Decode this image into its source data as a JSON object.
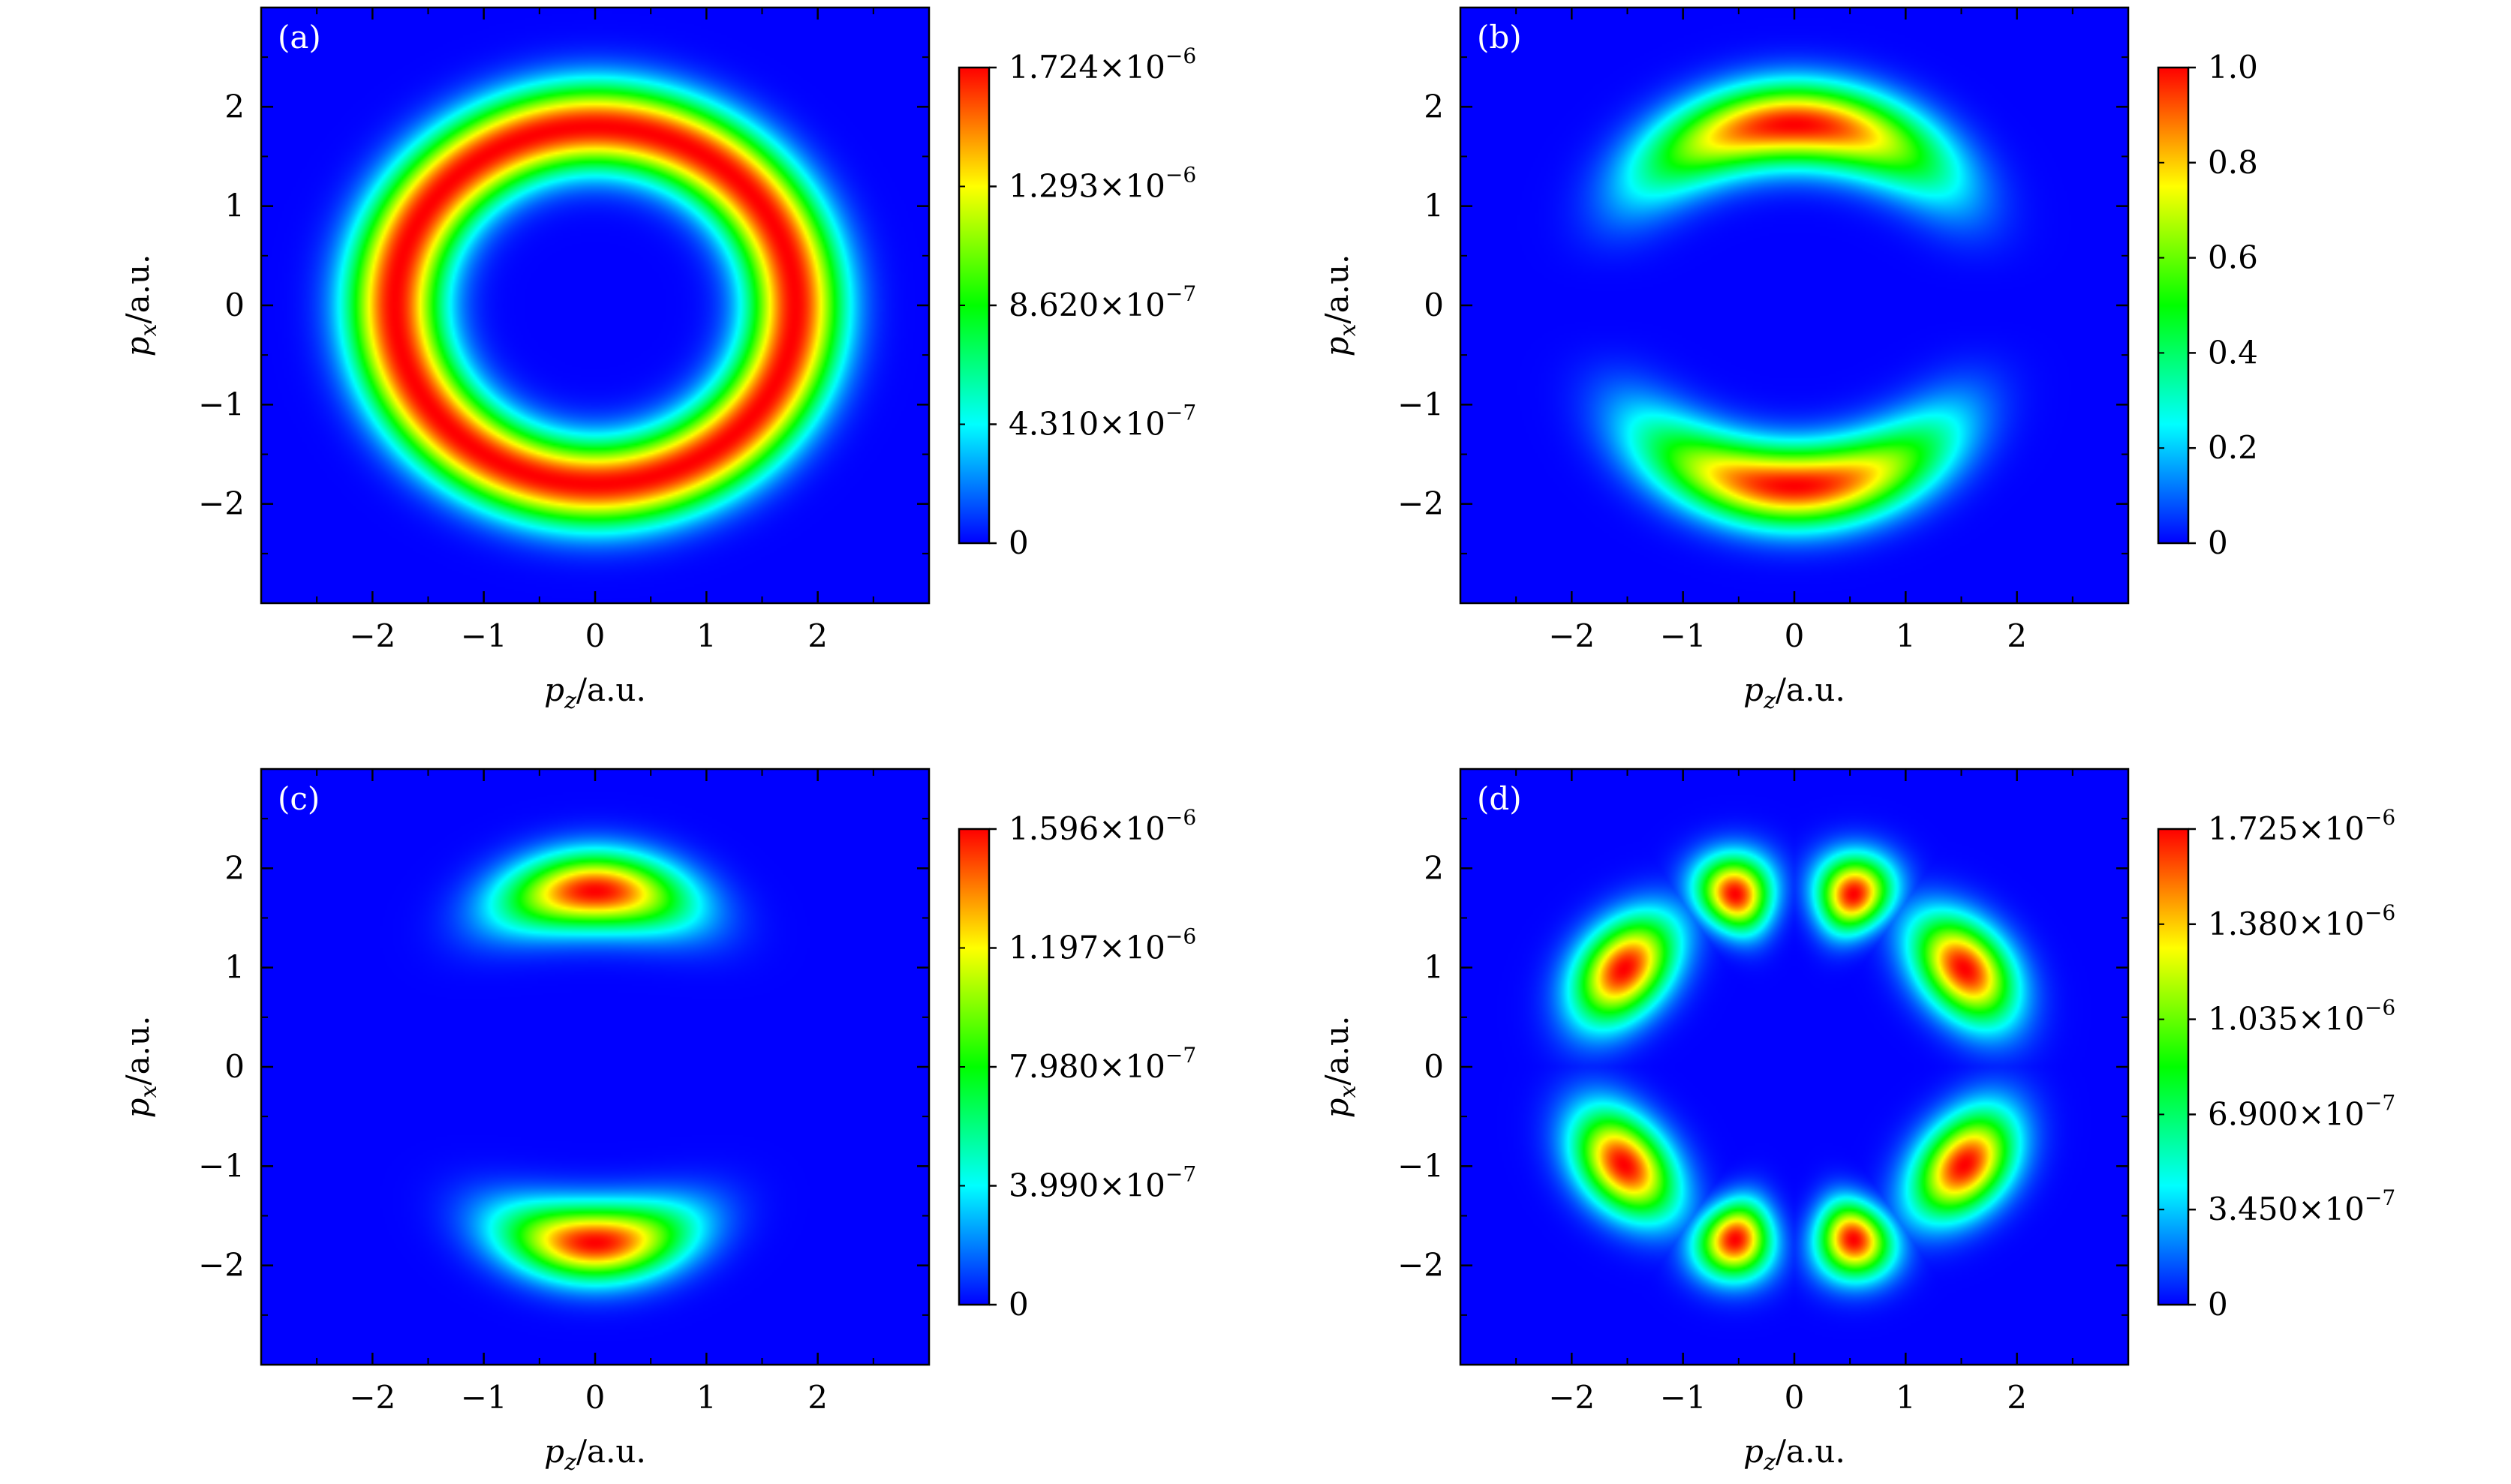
{
  "colormap": [
    "#0000ff",
    "#00ffff",
    "#00ff00",
    "#ffff00",
    "#ff0000"
  ],
  "background_color": "#0000ff",
  "chart_data": [
    {
      "type": "heatmap",
      "panel_label": "(a)",
      "pattern": "ring",
      "xlabel": {
        "main": "p",
        "sub": "z",
        "rest": "/a.u."
      },
      "ylabel": {
        "main": "p",
        "sub": "x",
        "rest": "/a.u."
      },
      "xlim": [
        -3,
        3
      ],
      "ylim": [
        -3,
        3
      ],
      "xticks": [
        -2,
        -1,
        0,
        1,
        2
      ],
      "yticks": [
        -2,
        -1,
        0,
        1,
        2
      ],
      "xtick_labels": [
        "−2",
        "−1",
        "0",
        "1",
        "2"
      ],
      "ytick_labels": [
        "−2",
        "−1",
        "0",
        "1",
        "2"
      ],
      "ring_radius": 1.8,
      "ring_width": 0.3,
      "colorbar": {
        "min": 0,
        "max": 1.724e-06,
        "ticks": [
          {
            "value": 1.724e-06,
            "mant": "1.724",
            "exp": "−6"
          },
          {
            "value": 1.293e-06,
            "mant": "1.293",
            "exp": "−6"
          },
          {
            "value": 8.62e-07,
            "mant": "8.620",
            "exp": "−7"
          },
          {
            "value": 4.31e-07,
            "mant": "4.310",
            "exp": "−7"
          },
          {
            "value": 0,
            "mant": "0",
            "exp": ""
          }
        ]
      }
    },
    {
      "type": "heatmap",
      "panel_label": "(b)",
      "pattern": "arcs-wide",
      "xlabel": {
        "main": "p",
        "sub": "z",
        "rest": "/a.u."
      },
      "ylabel": {
        "main": "p",
        "sub": "x",
        "rest": "/a.u."
      },
      "xlim": [
        -3,
        3
      ],
      "ylim": [
        -3,
        3
      ],
      "xticks": [
        -2,
        -1,
        0,
        1,
        2
      ],
      "yticks": [
        -2,
        -1,
        0,
        1,
        2
      ],
      "xtick_labels": [
        "−2",
        "−1",
        "0",
        "1",
        "2"
      ],
      "ytick_labels": [
        "−2",
        "−1",
        "0",
        "1",
        "2"
      ],
      "ring_radius": 1.82,
      "ring_width": 0.28,
      "colorbar": {
        "min": 0,
        "max": 1.0,
        "ticks": [
          {
            "value": 1.0,
            "mant": "1.0",
            "exp": ""
          },
          {
            "value": 0.8,
            "mant": "0.8",
            "exp": ""
          },
          {
            "value": 0.6,
            "mant": "0.6",
            "exp": ""
          },
          {
            "value": 0.4,
            "mant": "0.4",
            "exp": ""
          },
          {
            "value": 0.2,
            "mant": "0.2",
            "exp": ""
          },
          {
            "value": 0,
            "mant": "0",
            "exp": ""
          }
        ]
      }
    },
    {
      "type": "heatmap",
      "panel_label": "(c)",
      "pattern": "arcs-narrow",
      "xlabel": {
        "main": "p",
        "sub": "z",
        "rest": "/a.u."
      },
      "ylabel": {
        "main": "p",
        "sub": "x",
        "rest": "/a.u."
      },
      "xlim": [
        -3,
        3
      ],
      "ylim": [
        -3,
        3
      ],
      "xticks": [
        -2,
        -1,
        0,
        1,
        2
      ],
      "yticks": [
        -2,
        -1,
        0,
        1,
        2
      ],
      "xtick_labels": [
        "−2",
        "−1",
        "0",
        "1",
        "2"
      ],
      "ytick_labels": [
        "−2",
        "−1",
        "0",
        "1",
        "2"
      ],
      "ring_radius": 1.77,
      "ring_width": 0.26,
      "colorbar": {
        "min": 0,
        "max": 1.596e-06,
        "ticks": [
          {
            "value": 1.596e-06,
            "mant": "1.596",
            "exp": "−6"
          },
          {
            "value": 1.197e-06,
            "mant": "1.197",
            "exp": "−6"
          },
          {
            "value": 7.98e-07,
            "mant": "7.980",
            "exp": "−7"
          },
          {
            "value": 3.99e-07,
            "mant": "3.990",
            "exp": "−7"
          },
          {
            "value": 0,
            "mant": "0",
            "exp": ""
          }
        ]
      }
    },
    {
      "type": "heatmap",
      "panel_label": "(d)",
      "pattern": "lobes",
      "xlabel": {
        "main": "p",
        "sub": "z",
        "rest": "/a.u."
      },
      "ylabel": {
        "main": "p",
        "sub": "x",
        "rest": "/a.u."
      },
      "xlim": [
        -3,
        3
      ],
      "ylim": [
        -3,
        3
      ],
      "xticks": [
        -2,
        -1,
        0,
        1,
        2
      ],
      "yticks": [
        -2,
        -1,
        0,
        1,
        2
      ],
      "xtick_labels": [
        "−2",
        "−1",
        "0",
        "1",
        "2"
      ],
      "ytick_labels": [
        "−2",
        "−1",
        "0",
        "1",
        "2"
      ],
      "ring_radius": 1.82,
      "ring_width": 0.26,
      "colorbar": {
        "min": 0,
        "max": 1.725e-06,
        "ticks": [
          {
            "value": 1.725e-06,
            "mant": "1.725",
            "exp": "−6"
          },
          {
            "value": 1.38e-06,
            "mant": "1.380",
            "exp": "−6"
          },
          {
            "value": 1.035e-06,
            "mant": "1.035",
            "exp": "−6"
          },
          {
            "value": 6.9e-07,
            "mant": "6.900",
            "exp": "−7"
          },
          {
            "value": 3.45e-07,
            "mant": "3.450",
            "exp": "−7"
          },
          {
            "value": 0,
            "mant": "0",
            "exp": ""
          }
        ]
      }
    }
  ]
}
